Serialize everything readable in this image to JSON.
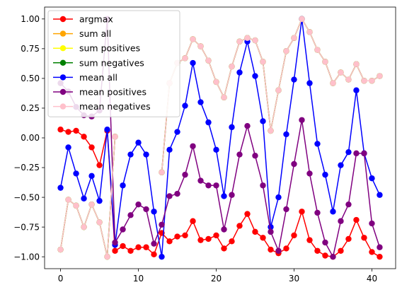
{
  "chart_data": {
    "type": "line",
    "x": [
      0,
      1,
      2,
      3,
      4,
      5,
      6,
      7,
      8,
      9,
      10,
      11,
      12,
      13,
      14,
      15,
      16,
      17,
      18,
      19,
      20,
      21,
      22,
      23,
      24,
      25,
      26,
      27,
      28,
      29,
      30,
      31,
      32,
      33,
      34,
      35,
      36,
      37,
      38,
      39,
      40,
      41
    ],
    "xlim": [
      -2.05,
      43.05
    ],
    "ylim": [
      -1.1,
      1.1
    ],
    "xticks": [
      0,
      10,
      20,
      30,
      40
    ],
    "xtick_labels": [
      "0",
      "10",
      "20",
      "30",
      "40"
    ],
    "yticks": [
      -1.0,
      -0.75,
      -0.5,
      -0.25,
      0.0,
      0.25,
      0.5,
      0.75,
      1.0
    ],
    "ytick_labels": [
      "−1.00",
      "−0.75",
      "−0.50",
      "−0.25",
      "0.00",
      "0.25",
      "0.50",
      "0.75",
      "1.00"
    ],
    "grid": false,
    "legend_position": "top-left",
    "marker": "circle",
    "series": [
      {
        "name": "argmax",
        "color": "#ff0000",
        "values": [
          0.07,
          0.05,
          0.06,
          0.01,
          -0.08,
          -0.23,
          0.06,
          -0.95,
          -0.91,
          -0.95,
          -0.92,
          -0.92,
          -0.98,
          -0.8,
          -0.87,
          -0.83,
          -0.82,
          -0.7,
          -0.86,
          -0.85,
          -0.82,
          -0.93,
          -0.87,
          -0.74,
          -0.64,
          -0.79,
          -0.84,
          -0.94,
          -0.97,
          -0.93,
          -0.82,
          -0.62,
          -0.86,
          -0.95,
          -0.99,
          -1.0,
          -0.95,
          -0.85,
          -0.69,
          -0.84,
          -0.96,
          -1.0
        ]
      },
      {
        "name": "sum all",
        "color": "#ffa500",
        "values": [
          -0.94,
          -0.52,
          -0.57,
          -0.75,
          -0.56,
          -0.71,
          -1.0,
          0.01,
          null,
          null,
          null,
          null,
          null,
          -0.29,
          0.46,
          0.63,
          0.67,
          0.83,
          0.77,
          0.65,
          0.47,
          0.34,
          0.6,
          0.81,
          0.84,
          0.82,
          0.64,
          0.06,
          0.4,
          0.73,
          0.84,
          1.0,
          0.89,
          0.74,
          0.64,
          0.46,
          0.55,
          0.49,
          0.62,
          0.48,
          0.48,
          0.52
        ]
      },
      {
        "name": "sum positives",
        "color": "#ffff00",
        "values": [
          -0.94,
          -0.52,
          -0.57,
          -0.75,
          -0.56,
          -0.71,
          -1.0,
          0.01,
          null,
          null,
          null,
          null,
          null,
          -0.29,
          0.46,
          0.63,
          0.67,
          0.83,
          0.77,
          0.65,
          0.47,
          0.34,
          0.6,
          0.81,
          0.84,
          0.82,
          0.64,
          0.06,
          0.4,
          0.73,
          0.84,
          1.0,
          0.89,
          0.74,
          0.64,
          0.46,
          0.55,
          0.49,
          0.62,
          0.48,
          0.48,
          0.52
        ]
      },
      {
        "name": "sum negatives",
        "color": "#008000",
        "values": [
          -0.94,
          -0.52,
          -0.57,
          -0.75,
          -0.56,
          -0.71,
          -1.0,
          0.01,
          null,
          null,
          null,
          null,
          null,
          -0.29,
          0.46,
          0.63,
          0.67,
          0.83,
          0.77,
          0.65,
          0.47,
          0.34,
          0.6,
          0.81,
          0.84,
          0.82,
          0.64,
          0.06,
          0.4,
          0.73,
          0.84,
          1.0,
          0.89,
          0.74,
          0.64,
          0.46,
          0.55,
          0.49,
          0.62,
          0.48,
          0.48,
          0.52
        ]
      },
      {
        "name": "mean all",
        "color": "#0000ff",
        "values": [
          -0.42,
          -0.08,
          -0.3,
          -0.51,
          -0.32,
          -0.53,
          0.07,
          -0.9,
          -0.4,
          -0.14,
          -0.04,
          -0.14,
          -0.62,
          -1.0,
          -0.1,
          0.05,
          0.27,
          0.63,
          0.3,
          0.13,
          -0.1,
          -0.49,
          0.09,
          0.55,
          0.81,
          0.52,
          0.14,
          -0.75,
          -0.5,
          0.03,
          0.49,
          1.0,
          0.46,
          -0.05,
          -0.31,
          -0.62,
          -0.23,
          -0.12,
          0.4,
          -0.13,
          -0.34,
          -0.48
        ]
      },
      {
        "name": "mean positives",
        "color": "#800080",
        "values": [
          0.46,
          0.39,
          0.26,
          0.19,
          0.18,
          0.23,
          1.0,
          -0.88,
          -0.77,
          -0.65,
          -0.56,
          -0.6,
          -0.89,
          -0.73,
          -0.49,
          -0.47,
          -0.31,
          -0.07,
          -0.36,
          -0.4,
          -0.4,
          -0.77,
          -0.48,
          -0.14,
          0.1,
          -0.15,
          -0.4,
          -0.79,
          -0.95,
          -0.6,
          -0.22,
          0.15,
          -0.3,
          -0.63,
          -0.88,
          -1.0,
          -0.7,
          -0.56,
          -0.13,
          -0.13,
          -0.72,
          -0.92
        ]
      },
      {
        "name": "mean negatives",
        "color": "#ffc0cb",
        "values": [
          -0.94,
          -0.52,
          -0.57,
          -0.75,
          -0.56,
          -0.71,
          -1.0,
          0.01,
          null,
          null,
          null,
          null,
          null,
          -0.29,
          0.46,
          0.63,
          0.67,
          0.83,
          0.77,
          0.65,
          0.47,
          0.34,
          0.6,
          0.81,
          0.84,
          0.82,
          0.64,
          0.06,
          0.4,
          0.73,
          0.84,
          1.0,
          0.89,
          0.74,
          0.64,
          0.46,
          0.55,
          0.49,
          0.62,
          0.48,
          0.48,
          0.52
        ]
      }
    ]
  }
}
